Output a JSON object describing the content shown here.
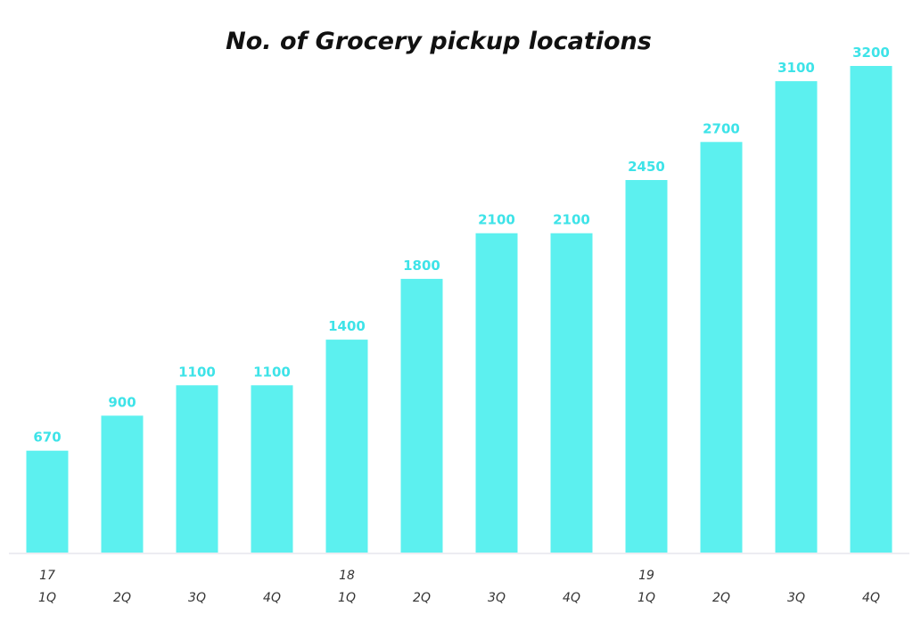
{
  "colors": {
    "bar": "#5cf0ef",
    "data_label": "#3ee3e8",
    "axis_line": "#e6e6ee",
    "background": "#ffffff"
  },
  "chart_data": {
    "type": "bar",
    "title": "No. of Grocery pickup locations",
    "xlabel": "",
    "ylabel": "",
    "ylim": [
      0,
      3200
    ],
    "grid": false,
    "legend": "none",
    "categories": [
      "17 1Q",
      "2Q",
      "3Q",
      "4Q",
      "18 1Q",
      "2Q",
      "3Q",
      "4Q",
      "19 1Q",
      "2Q",
      "3Q",
      "4Q"
    ],
    "tick_labels": [
      {
        "year": "17",
        "quarter": "1Q"
      },
      {
        "year": "",
        "quarter": "2Q"
      },
      {
        "year": "",
        "quarter": "3Q"
      },
      {
        "year": "",
        "quarter": "4Q"
      },
      {
        "year": "18",
        "quarter": "1Q"
      },
      {
        "year": "",
        "quarter": "2Q"
      },
      {
        "year": "",
        "quarter": "3Q"
      },
      {
        "year": "",
        "quarter": "4Q"
      },
      {
        "year": "19",
        "quarter": "1Q"
      },
      {
        "year": "",
        "quarter": "2Q"
      },
      {
        "year": "",
        "quarter": "3Q"
      },
      {
        "year": "",
        "quarter": "4Q"
      }
    ],
    "values": [
      670,
      900,
      1100,
      1100,
      1400,
      1800,
      2100,
      2100,
      2450,
      2700,
      3100,
      3200
    ],
    "data_labels": [
      "670",
      "900",
      "1100",
      "1100",
      "1400",
      "1800",
      "2100",
      "2100",
      "2450",
      "2700",
      "3100",
      "3200"
    ]
  }
}
